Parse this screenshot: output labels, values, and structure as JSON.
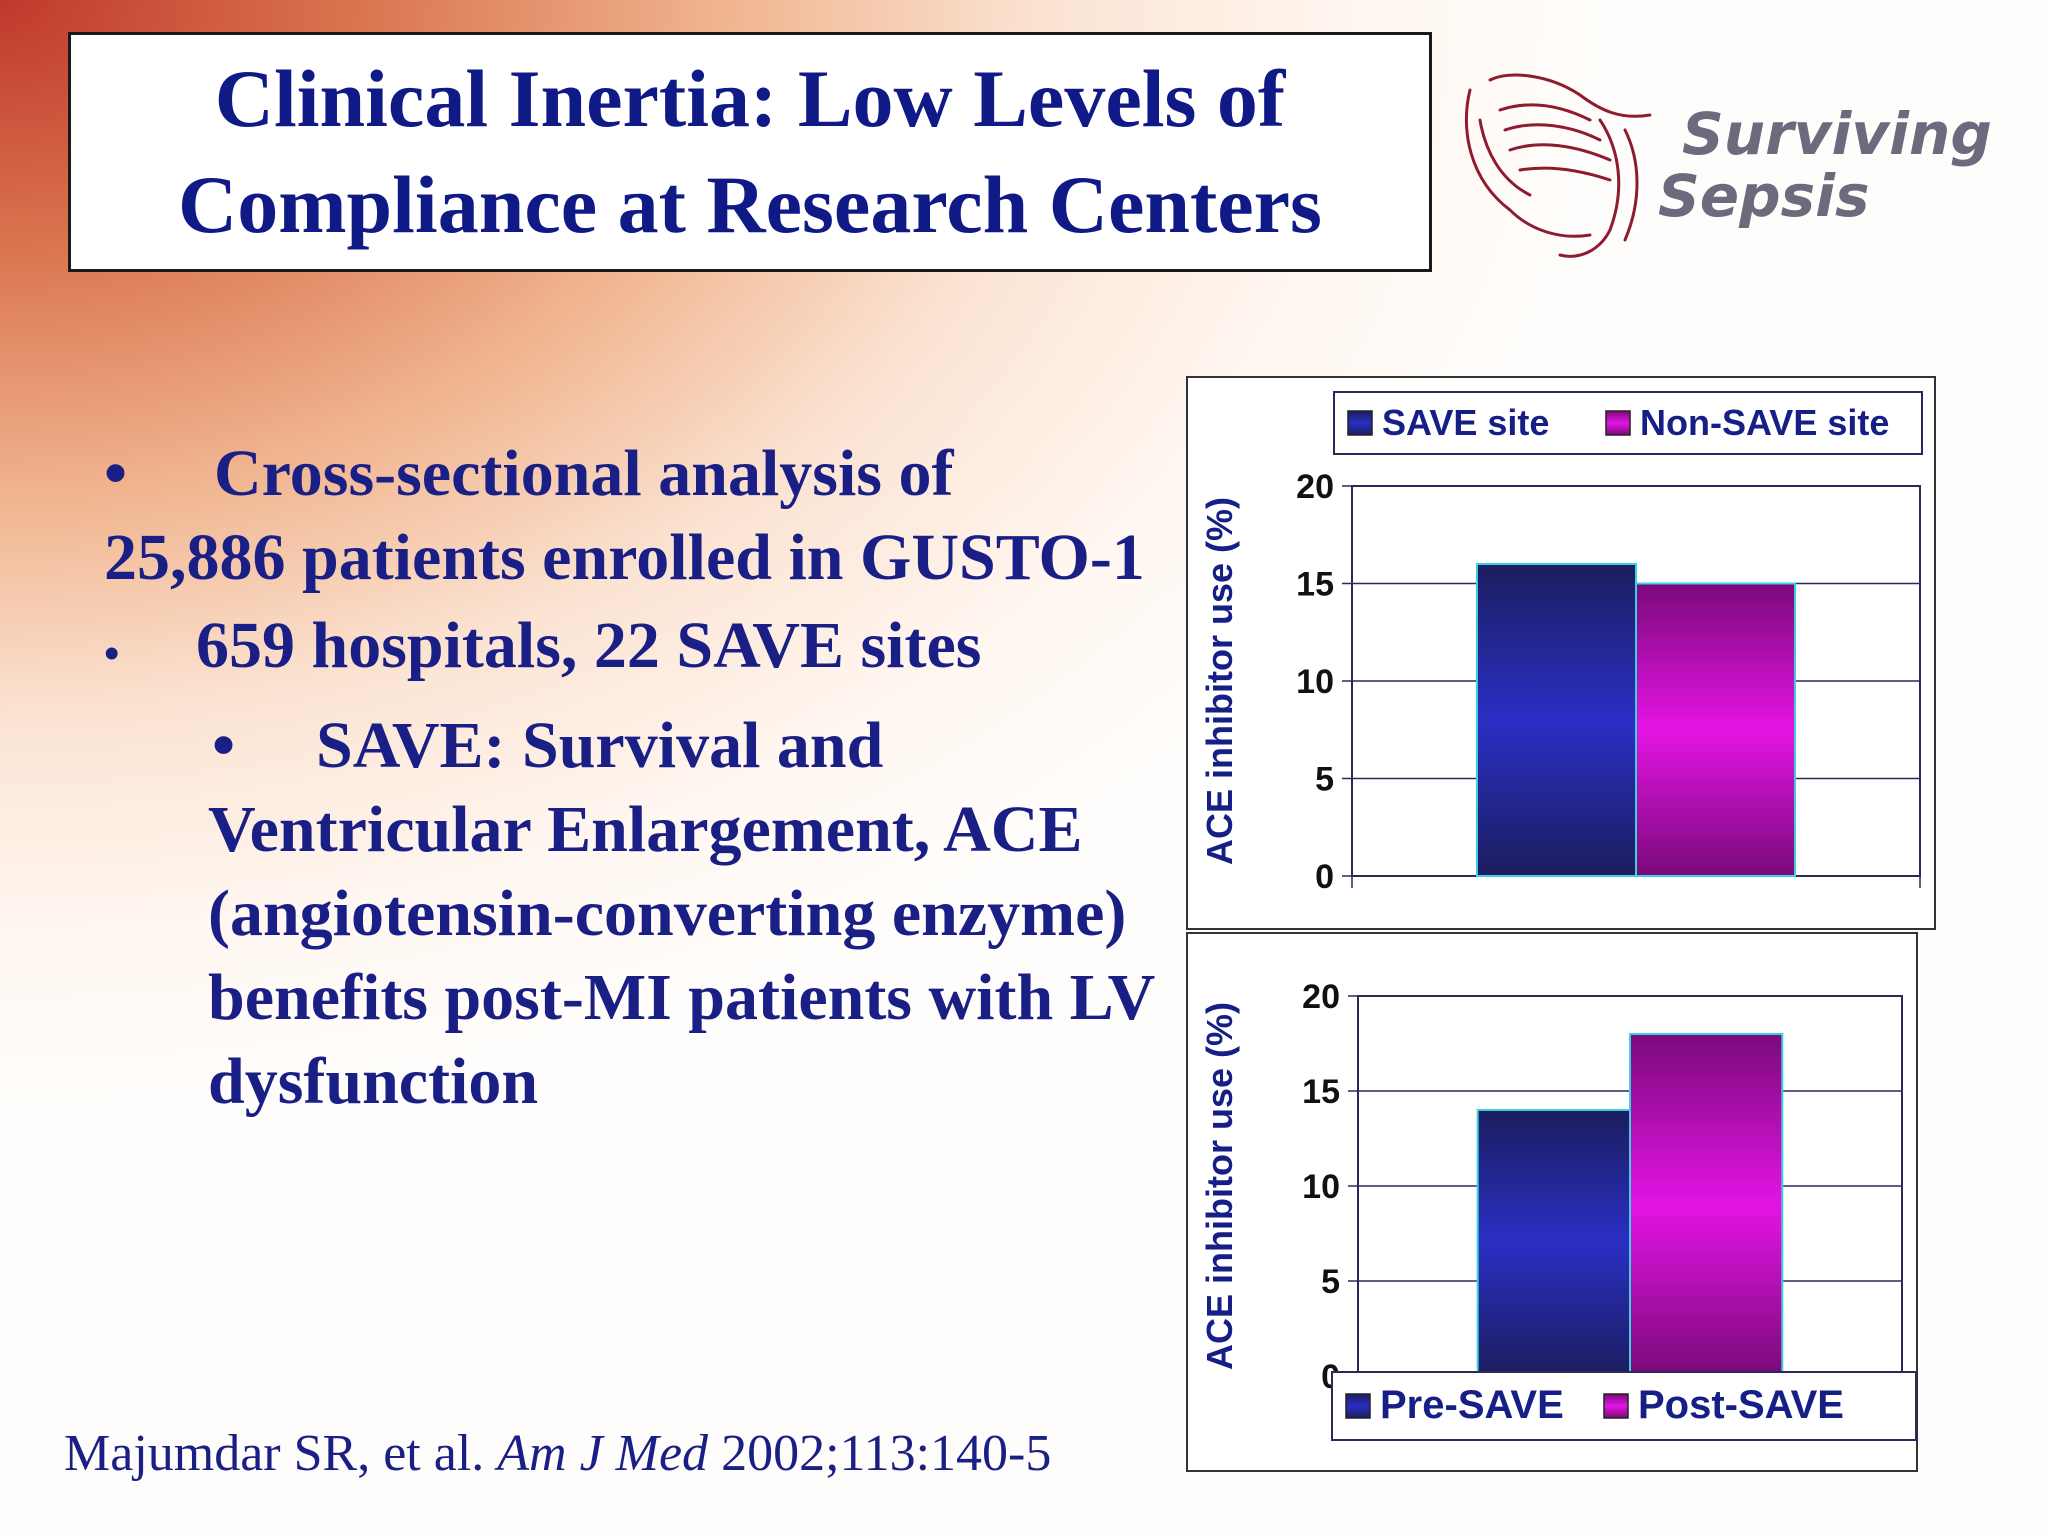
{
  "slide": {
    "title_line1": "Clinical Inertia: Low Levels of",
    "title_line2": "Compliance at Research Centers",
    "logo_line1": "Surviving",
    "logo_line2": "Sepsis",
    "bullet_symbol": "•",
    "bullets": [
      "Cross-sectional analysis of",
      "25,886 patients enrolled in GUSTO-1",
      "659 hospitals, 22 SAVE sites",
      "SAVE: Survival and",
      "Ventricular Enlargement, ACE",
      "(angiotensin-converting enzyme)",
      "benefits post-MI patients with LV",
      "dysfunction"
    ],
    "citation_author": "Majumdar SR, et al.",
    "citation_journal": "Am J Med",
    "citation_ref": "2002;113:140-5"
  },
  "colors": {
    "title": "#0f1a86",
    "bar_blue": "#2a2fc4",
    "bar_magenta": "#e414e4"
  },
  "chart_data": [
    {
      "type": "bar",
      "categories": [
        ""
      ],
      "series": [
        {
          "name": "SAVE site",
          "values": [
            16
          ]
        },
        {
          "name": "Non-SAVE site",
          "values": [
            15
          ]
        }
      ],
      "ylabel": "ACE inhibitor use (%)",
      "ylim": [
        0,
        20
      ],
      "yticks": [
        "0",
        "5",
        "10",
        "15",
        "20"
      ],
      "grid": true,
      "legend": "top"
    },
    {
      "type": "bar",
      "categories": [
        ""
      ],
      "series": [
        {
          "name": "Pre-SAVE",
          "values": [
            14
          ]
        },
        {
          "name": "Post-SAVE",
          "values": [
            18
          ]
        }
      ],
      "ylabel": "ACE inhibitor use (%)",
      "ylim": [
        0,
        20
      ],
      "yticks": [
        "0",
        "5",
        "10",
        "15",
        "20"
      ],
      "grid": true,
      "legend": "bottom"
    }
  ]
}
